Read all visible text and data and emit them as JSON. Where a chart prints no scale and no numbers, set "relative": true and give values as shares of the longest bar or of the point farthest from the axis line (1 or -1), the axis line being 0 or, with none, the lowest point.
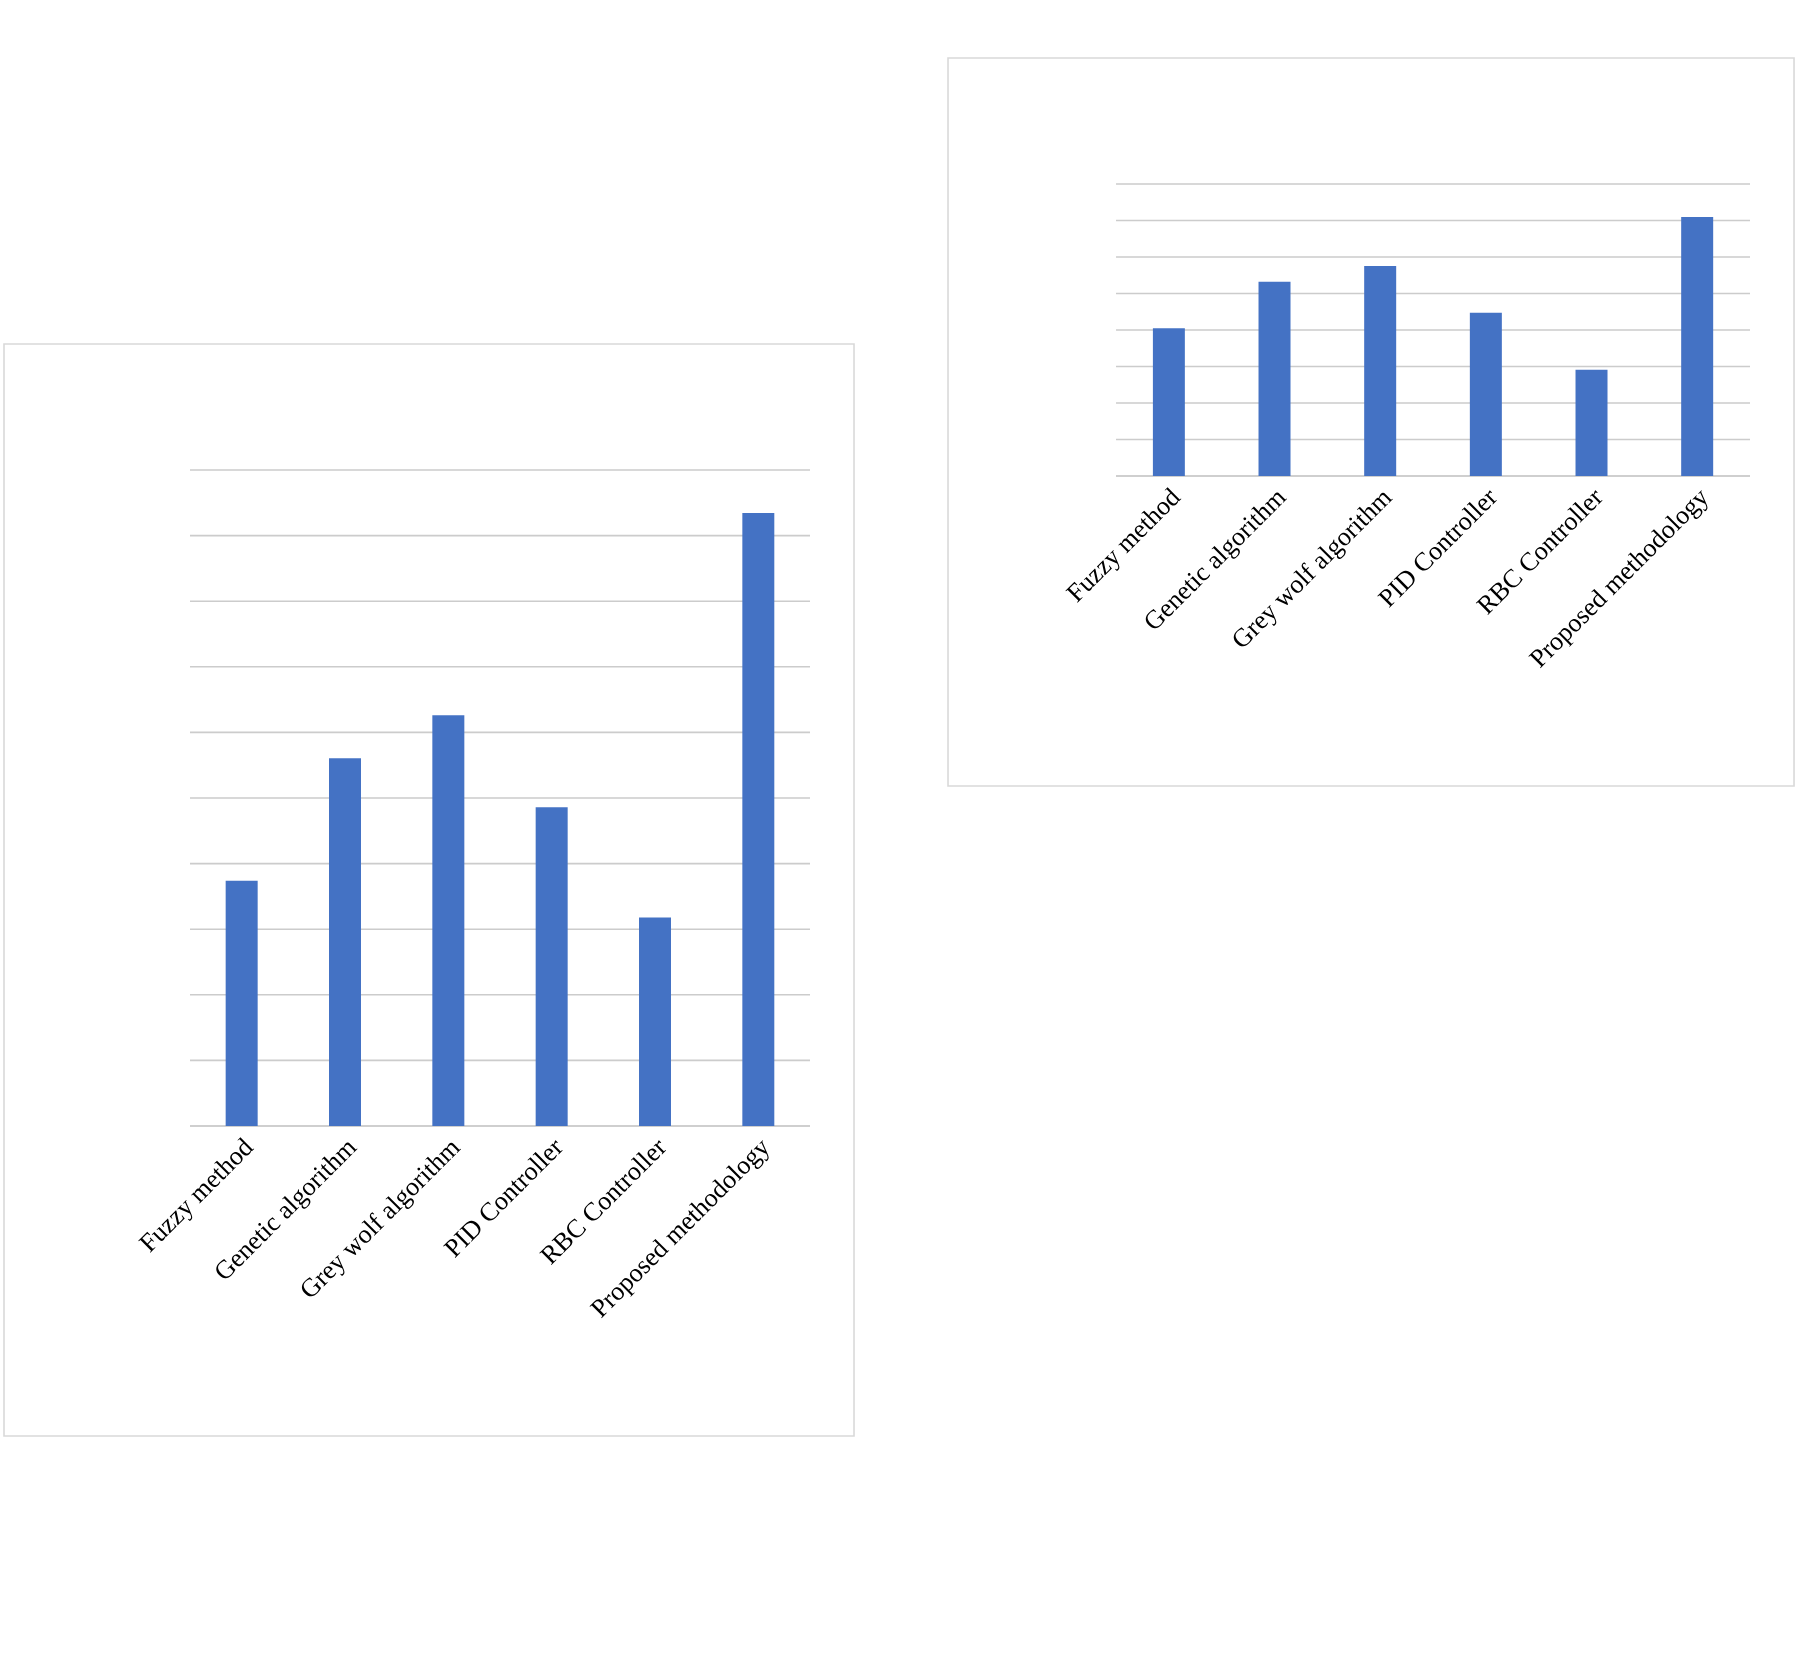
{
  "chart_data": [
    {
      "type": "bar",
      "relative": true,
      "grid": "y",
      "color": "#4472c4",
      "categories": [
        "Fuzzy method",
        "Genetic algorithm",
        "Grey wolf algorithm",
        "PID Controller",
        "RBC Controller",
        "Proposed methodology"
      ],
      "values": [
        0.4,
        0.6,
        0.67,
        0.52,
        0.34,
        1
      ]
    },
    {
      "type": "bar",
      "relative": true,
      "grid": "y",
      "color": "#4472c4",
      "categories": [
        "Fuzzy method",
        "Genetic algorithm",
        "Grey wolf algorithm",
        "PID Controller",
        "RBC Controller",
        "Proposed methodology"
      ],
      "values": [
        0.57,
        0.75,
        0.81,
        0.63,
        0.41,
        1
      ]
    }
  ]
}
